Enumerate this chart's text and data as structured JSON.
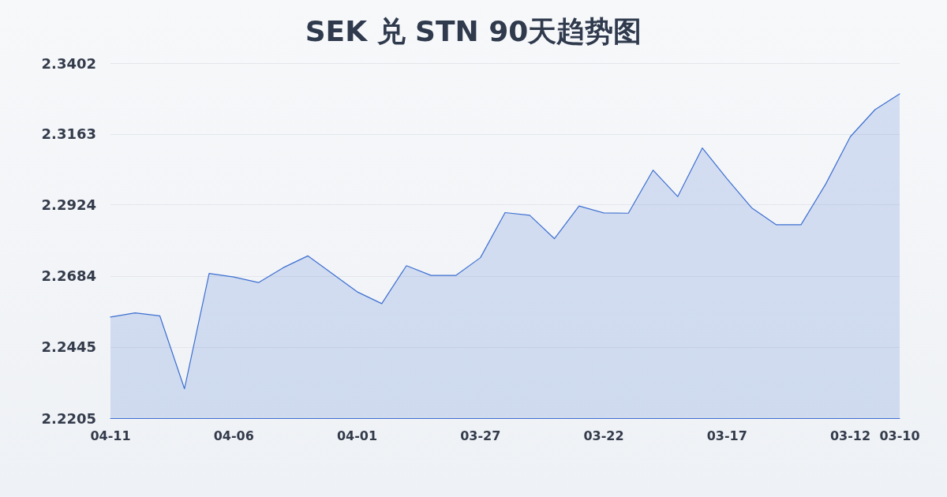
{
  "chart_data": {
    "type": "area",
    "title": "SEK 兑 STN 90天趋势图",
    "categories": [
      "04-11",
      null,
      null,
      null,
      null,
      "04-06",
      null,
      null,
      null,
      null,
      "04-01",
      null,
      null,
      null,
      null,
      "03-27",
      null,
      null,
      null,
      null,
      "03-22",
      null,
      null,
      null,
      null,
      "03-17",
      null,
      null,
      null,
      null,
      "03-12",
      null,
      "03-10"
    ],
    "values": [
      2.2546,
      2.256,
      2.255,
      2.2304,
      2.2693,
      2.2681,
      2.2662,
      2.2712,
      2.2752,
      2.2692,
      2.2631,
      2.2591,
      2.2719,
      2.2686,
      2.2686,
      2.2746,
      2.2898,
      2.2889,
      2.281,
      2.292,
      2.2897,
      2.2896,
      2.3041,
      2.2952,
      2.3116,
      2.3012,
      2.2914,
      2.2857,
      2.2857,
      2.2994,
      2.3154,
      2.3245,
      2.3298
    ],
    "color": "#3d6fd1",
    "ylim": [
      2.2205,
      2.3402
    ],
    "yticks": [
      2.2205,
      2.2445,
      2.2684,
      2.2924,
      2.3163,
      2.3402
    ],
    "grid": "y",
    "marker": "none"
  }
}
